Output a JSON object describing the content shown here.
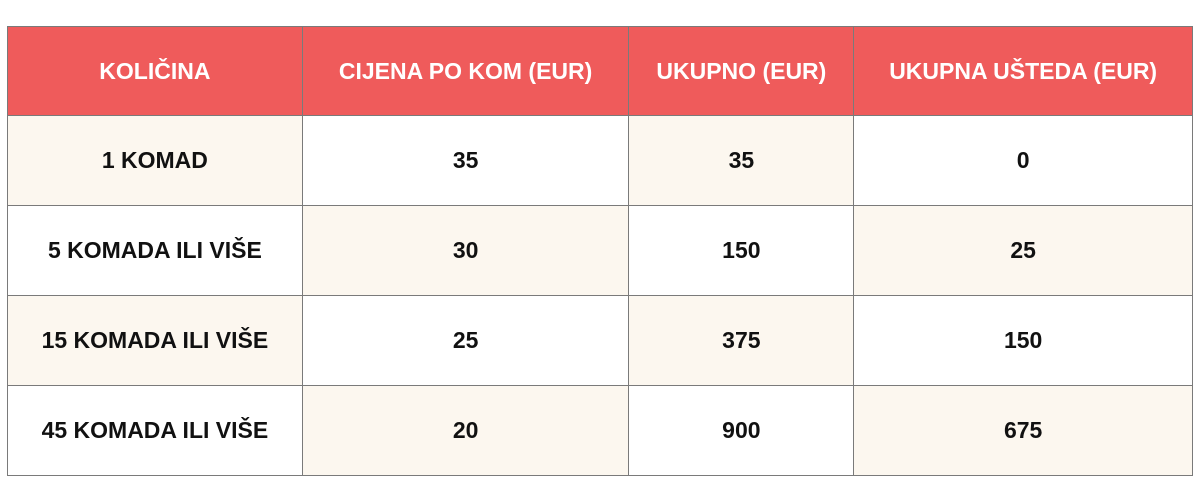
{
  "colors": {
    "header": "#ef5b5b",
    "cream": "#fcf7ef",
    "border": "#7a7a7a"
  },
  "table": {
    "headers": [
      "KOLIČINA",
      "CIJENA PO KOM (EUR)",
      "UKUPNO (EUR)",
      "UKUPNA UŠTEDA (EUR)"
    ],
    "rows": [
      [
        "1 KOMAD",
        "35",
        "35",
        "0"
      ],
      [
        "5 KOMADA ILI VIŠE",
        "30",
        "150",
        "25"
      ],
      [
        "15 KOMADA ILI VIŠE",
        "25",
        "375",
        "150"
      ],
      [
        "45 KOMADA ILI VIŠE",
        "20",
        "900",
        "675"
      ]
    ]
  }
}
